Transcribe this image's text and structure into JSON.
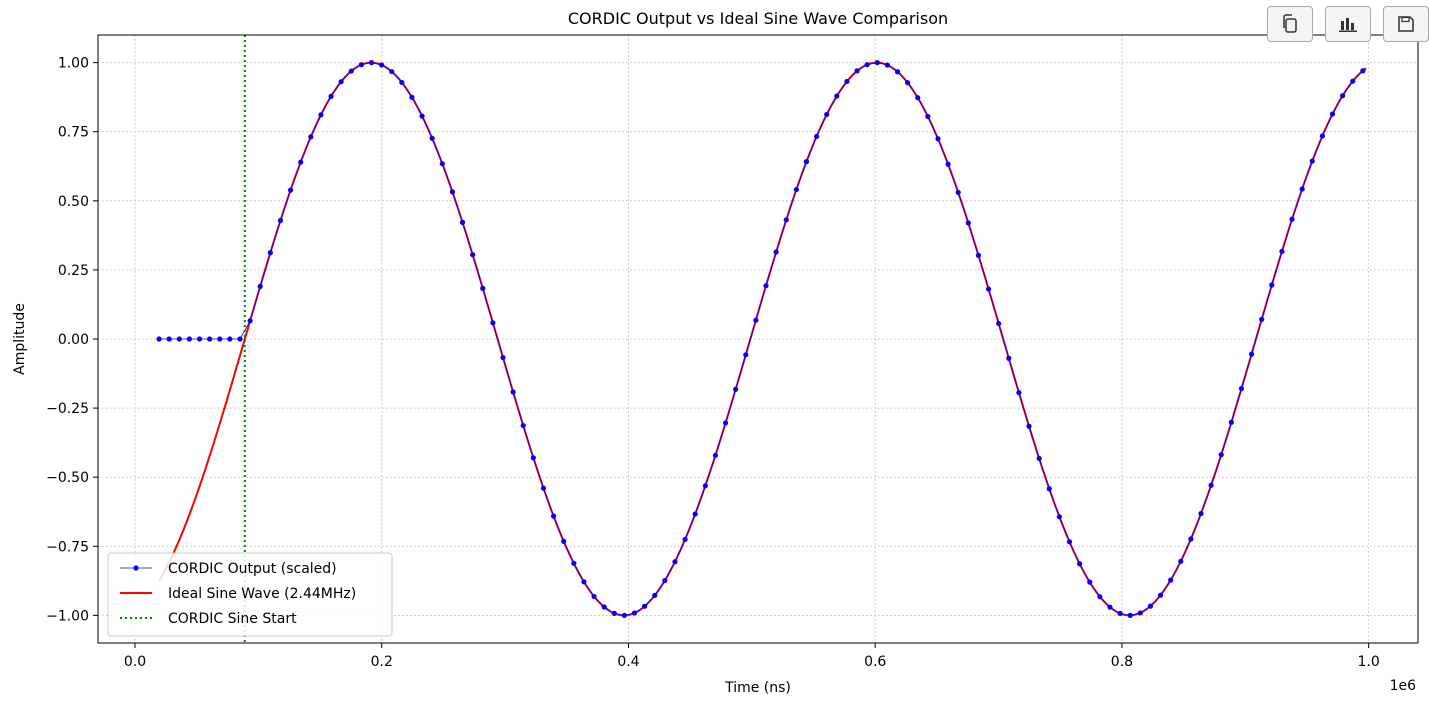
{
  "toolbar": {
    "buttons": [
      {
        "name": "copy-button",
        "icon": "copy-icon"
      },
      {
        "name": "chart-button",
        "icon": "bar-chart-icon"
      },
      {
        "name": "save-button",
        "icon": "floppy-disk-icon"
      }
    ]
  },
  "chart_data": {
    "type": "line",
    "title": "CORDIC Output vs Ideal Sine Wave Comparison",
    "xlabel": "Time (ns)",
    "ylabel": "Amplitude",
    "x_offset_label": "1e6",
    "xlim": [
      -0.03,
      1.04
    ],
    "ylim": [
      -1.1,
      1.1
    ],
    "x_ticks": [
      0.0,
      0.2,
      0.4,
      0.6,
      0.8,
      1.0
    ],
    "x_tick_labels": [
      "0.0",
      "0.2",
      "0.4",
      "0.6",
      "0.8",
      "1.0"
    ],
    "y_ticks": [
      -1.0,
      -0.75,
      -0.5,
      -0.25,
      0.0,
      0.25,
      0.5,
      0.75,
      1.0
    ],
    "y_tick_labels": [
      "−1.00",
      "−0.75",
      "−0.50",
      "−0.25",
      "0.00",
      "0.25",
      "0.50",
      "0.75",
      "1.00"
    ],
    "grid": true,
    "legend_position": "lower-left",
    "series": [
      {
        "name": "CORDIC Output (scaled)",
        "kind": "line-markers",
        "color": "#0000ff",
        "x_start": 0.0195,
        "x_end": 0.998,
        "x_step": 0.0082,
        "flat_until": 0.089,
        "frequency_mhz": 2.44,
        "phase_zero_at": 0.089
      },
      {
        "name": "Ideal Sine Wave (2.44MHz)",
        "kind": "line",
        "color": "#ff0000",
        "x_start": 0.0195,
        "x_end": 0.998,
        "frequency_mhz": 2.44,
        "phase_zero_at": 0.089
      },
      {
        "name": "CORDIC Sine Start",
        "kind": "vline",
        "color": "#008000",
        "x": 0.089
      }
    ],
    "colors": {
      "grid": "#b0b0b0",
      "axes": "#000000",
      "background": "#ffffff"
    }
  }
}
